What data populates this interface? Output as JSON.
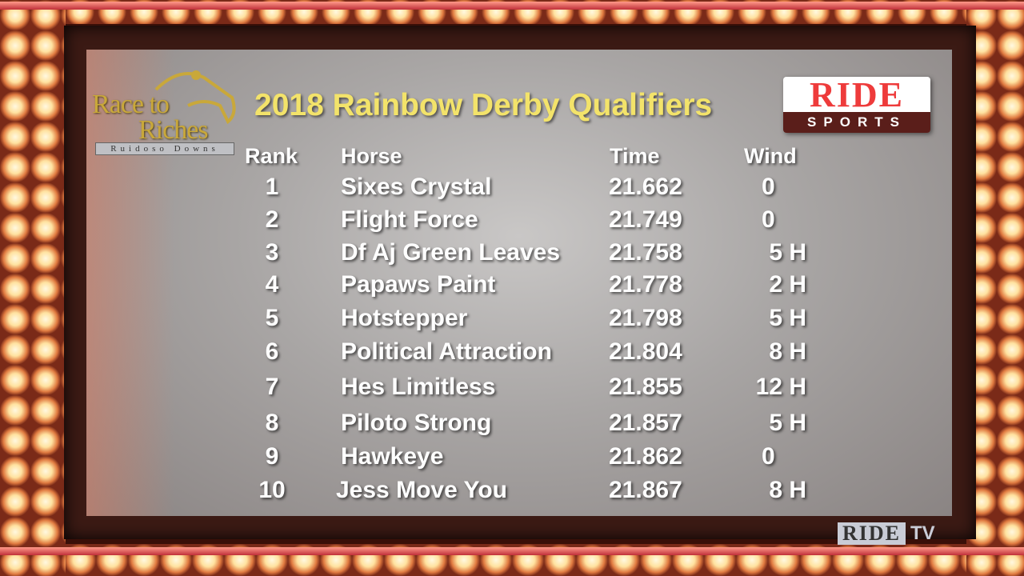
{
  "title": "2018 Rainbow Derby Qualifiers",
  "logos": {
    "left": {
      "line1": "Race to",
      "line2": "Riches",
      "sub": "Ruidoso Downs"
    },
    "right": {
      "top": "RIDE",
      "bottom": "SPORTS"
    },
    "bug": {
      "box": "RIDE",
      "suffix": "TV"
    }
  },
  "headers": {
    "rank": "Rank",
    "horse": "Horse",
    "time": "Time",
    "wind": "Wind"
  },
  "rows": [
    {
      "rank": "1",
      "horse": "Sixes Crystal",
      "time": "21.662",
      "wind": "0"
    },
    {
      "rank": "2",
      "horse": "Flight Force",
      "time": "21.749",
      "wind": "0"
    },
    {
      "rank": "3",
      "horse": "Df Aj Green Leaves",
      "time": "21.758",
      "wind": "5 H"
    },
    {
      "rank": "4",
      "horse": "Papaws Paint",
      "time": "21.778",
      "wind": "2 H"
    },
    {
      "rank": "5",
      "horse": "Hotstepper",
      "time": "21.798",
      "wind": "5 H"
    },
    {
      "rank": "6",
      "horse": "Political Attraction",
      "time": "21.804",
      "wind": "8 H"
    },
    {
      "rank": "7",
      "horse": "Hes Limitless",
      "time": "21.855",
      "wind": "12 H"
    },
    {
      "rank": "8",
      "horse": "Piloto Strong",
      "time": "21.857",
      "wind": "5 H"
    },
    {
      "rank": "9",
      "horse": "Hawkeye",
      "time": "21.862",
      "wind": "0"
    },
    {
      "rank": "10",
      "horse": "Jess Move You",
      "time": "21.867",
      "wind": "8 H"
    }
  ],
  "colors": {
    "title": "#f3e36a",
    "ride_red": "#ee3b3b"
  }
}
